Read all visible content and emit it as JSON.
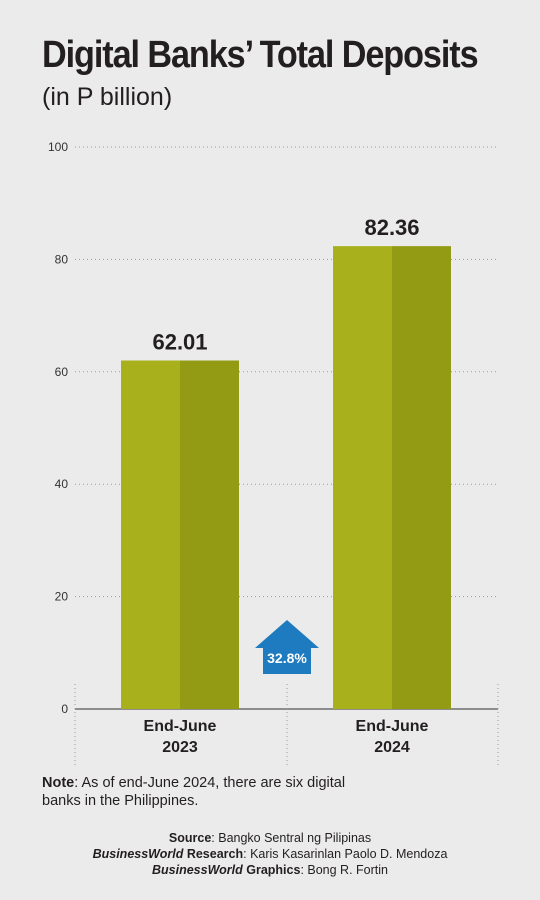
{
  "title": "Digital Banks’ Total Deposits",
  "subtitle": "(in P billion)",
  "note": {
    "label": "Note",
    "text": ": As of end-June 2024, there are six digital banks in the Philippines."
  },
  "credits": {
    "source_label": "Source",
    "source_value": ": Bangko Sentral ng Pilipinas",
    "research_label_italic": "BusinessWorld",
    "research_label_rest": " Research",
    "research_value": ": Karis Kasarinlan Paolo D. Mendoza",
    "graphics_label_italic": "BusinessWorld",
    "graphics_label_rest": " Graphics",
    "graphics_value": ": Bong R. Fortin"
  },
  "chart_data": {
    "type": "bar",
    "categories": [
      [
        "End-June",
        "2023"
      ],
      [
        "End-June",
        "2024"
      ]
    ],
    "values": [
      62.01,
      82.36
    ],
    "value_labels": [
      "62.01",
      "82.36"
    ],
    "ylim": [
      0,
      100
    ],
    "yticks": [
      0,
      20,
      40,
      60,
      80,
      100
    ],
    "grid": true,
    "colors": {
      "bar_light": "#a8b11c",
      "bar_dark": "#939b14",
      "badge": "#1f7bc0"
    },
    "annotation": {
      "text": "32.8%",
      "icon": "up-arrow-icon"
    }
  }
}
